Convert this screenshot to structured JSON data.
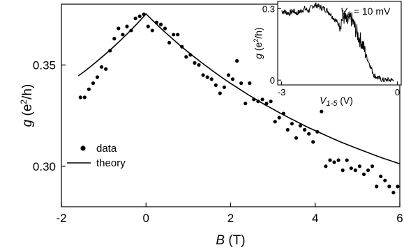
{
  "chart_data": [
    {
      "type": "scatter",
      "xlabel": {
        "symbol": "B",
        "unit": "(T)"
      },
      "ylabel": {
        "symbol": "g",
        "pre": "(e",
        "sup": "2",
        "post": "/h)"
      },
      "xlim": [
        -2.0,
        6.0
      ],
      "ylim": [
        0.28,
        0.38
      ],
      "xticks": [
        {
          "value": -2,
          "label": "-2"
        },
        {
          "value": 0,
          "label": "0"
        },
        {
          "value": 2,
          "label": "2"
        },
        {
          "value": 4,
          "label": "4"
        },
        {
          "value": 6,
          "label": "6"
        }
      ],
      "yticks": [
        {
          "value": 0.3,
          "label": "0.30"
        },
        {
          "value": 0.35,
          "label": "0.35"
        }
      ],
      "legend": {
        "position": "lower-left",
        "entries": [
          {
            "label": "data",
            "marker": "dot"
          },
          {
            "label": "theory",
            "marker": "line"
          }
        ]
      },
      "series": [
        {
          "name": "data",
          "style": "markers",
          "x": [
            -1.55,
            -1.45,
            -1.35,
            -1.25,
            -1.15,
            -1.05,
            -0.95,
            -0.85,
            -0.75,
            -0.65,
            -0.55,
            -0.45,
            -0.35,
            -0.25,
            -0.15,
            -0.05,
            0.05,
            0.15,
            0.25,
            0.35,
            0.45,
            0.55,
            0.65,
            0.75,
            0.85,
            0.95,
            1.05,
            1.15,
            1.25,
            1.35,
            1.45,
            1.55,
            1.65,
            1.75,
            1.85,
            1.95,
            2.05,
            2.15,
            2.25,
            2.35,
            2.45,
            2.55,
            2.65,
            2.75,
            2.85,
            2.95,
            3.05,
            3.15,
            3.25,
            3.35,
            3.45,
            3.55,
            3.65,
            3.75,
            3.85,
            3.95,
            4.05,
            4.15,
            4.25,
            4.35,
            4.45,
            4.55,
            4.65,
            4.75,
            4.85,
            4.95,
            5.05,
            5.15,
            5.25,
            5.35,
            5.45,
            5.55,
            5.65,
            5.75,
            5.85,
            5.95
          ],
          "y": [
            0.334,
            0.334,
            0.338,
            0.341,
            0.344,
            0.349,
            0.348,
            0.357,
            0.363,
            0.368,
            0.365,
            0.369,
            0.367,
            0.373,
            0.374,
            0.375,
            0.369,
            0.367,
            0.371,
            0.37,
            0.368,
            0.361,
            0.365,
            0.365,
            0.359,
            0.354,
            0.355,
            0.351,
            0.35,
            0.345,
            0.344,
            0.343,
            0.34,
            0.336,
            0.339,
            0.345,
            0.343,
            0.352,
            0.341,
            0.331,
            0.341,
            0.333,
            0.332,
            0.333,
            0.331,
            0.332,
            0.322,
            0.324,
            0.326,
            0.318,
            0.321,
            0.314,
            0.32,
            0.318,
            0.316,
            0.312,
            0.317,
            0.327,
            0.3,
            0.303,
            0.302,
            0.303,
            0.298,
            0.303,
            0.299,
            0.298,
            0.3,
            0.296,
            0.298,
            0.3,
            0.29,
            0.295,
            0.293,
            0.29,
            0.287,
            0.29
          ]
        },
        {
          "name": "theory",
          "style": "line",
          "x": [
            -1.6,
            -1.4,
            -1.2,
            -1.0,
            -0.8,
            -0.6,
            -0.4,
            -0.2,
            0.0,
            0.2,
            0.4,
            0.6,
            0.8,
            1.0,
            1.2,
            1.4,
            1.6,
            1.8,
            2.0,
            2.2,
            2.4,
            2.6,
            2.8,
            3.0,
            3.2,
            3.4,
            3.6,
            3.8,
            4.0,
            4.2,
            4.4,
            4.6,
            4.8,
            5.0,
            5.2,
            5.4,
            5.6,
            5.8,
            6.0
          ],
          "y": [
            0.3446,
            0.3477,
            0.3511,
            0.3546,
            0.3583,
            0.3622,
            0.3663,
            0.3706,
            0.3752,
            0.3711,
            0.3671,
            0.3634,
            0.3597,
            0.3563,
            0.353,
            0.3498,
            0.3467,
            0.3437,
            0.3409,
            0.3382,
            0.3355,
            0.333,
            0.3305,
            0.3282,
            0.3259,
            0.3237,
            0.3216,
            0.3195,
            0.3176,
            0.3157,
            0.3138,
            0.312,
            0.3103,
            0.3087,
            0.3071,
            0.3055,
            0.304,
            0.3026,
            0.3012
          ]
        }
      ]
    },
    {
      "type": "line",
      "placement": "inset-top-right",
      "annotation": {
        "symbol": "V",
        "sub": "b",
        "rest": " = 10 mV"
      },
      "xlabel": {
        "symbol": "V",
        "sub": "1-5",
        "unit": "(V)"
      },
      "ylabel": {
        "symbol": "g",
        "pre": "(e",
        "sup": "2",
        "post": "/h)"
      },
      "xlim": [
        -3.1,
        0.1
      ],
      "ylim": [
        -0.02,
        0.33
      ],
      "xticks": [
        {
          "value": -3,
          "label": "-3"
        },
        {
          "value": 0,
          "label": "0"
        }
      ],
      "yticks": [
        {
          "value": 0,
          "label": "0"
        },
        {
          "value": 0.3,
          "label": "0.3"
        }
      ],
      "series": [
        {
          "name": "",
          "x": [
            -3.0,
            -2.9,
            -2.8,
            -2.7,
            -2.6,
            -2.5,
            -2.4,
            -2.3,
            -2.2,
            -2.1,
            -2.0,
            -1.9,
            -1.8,
            -1.7,
            -1.6,
            -1.5,
            -1.4,
            -1.3,
            -1.2,
            -1.1,
            -1.0,
            -0.9,
            -0.8,
            -0.7,
            -0.6,
            -0.5,
            -0.4,
            -0.3,
            -0.2,
            -0.1
          ],
          "y": [
            0.29,
            0.285,
            0.28,
            0.29,
            0.28,
            0.29,
            0.3,
            0.29,
            0.31,
            0.315,
            0.305,
            0.3,
            0.29,
            0.27,
            0.25,
            0.23,
            0.27,
            0.24,
            0.26,
            0.22,
            0.18,
            0.15,
            0.1,
            0.06,
            0.02,
            0.01,
            0.0,
            0.0,
            0.0,
            0.0
          ]
        }
      ]
    }
  ]
}
